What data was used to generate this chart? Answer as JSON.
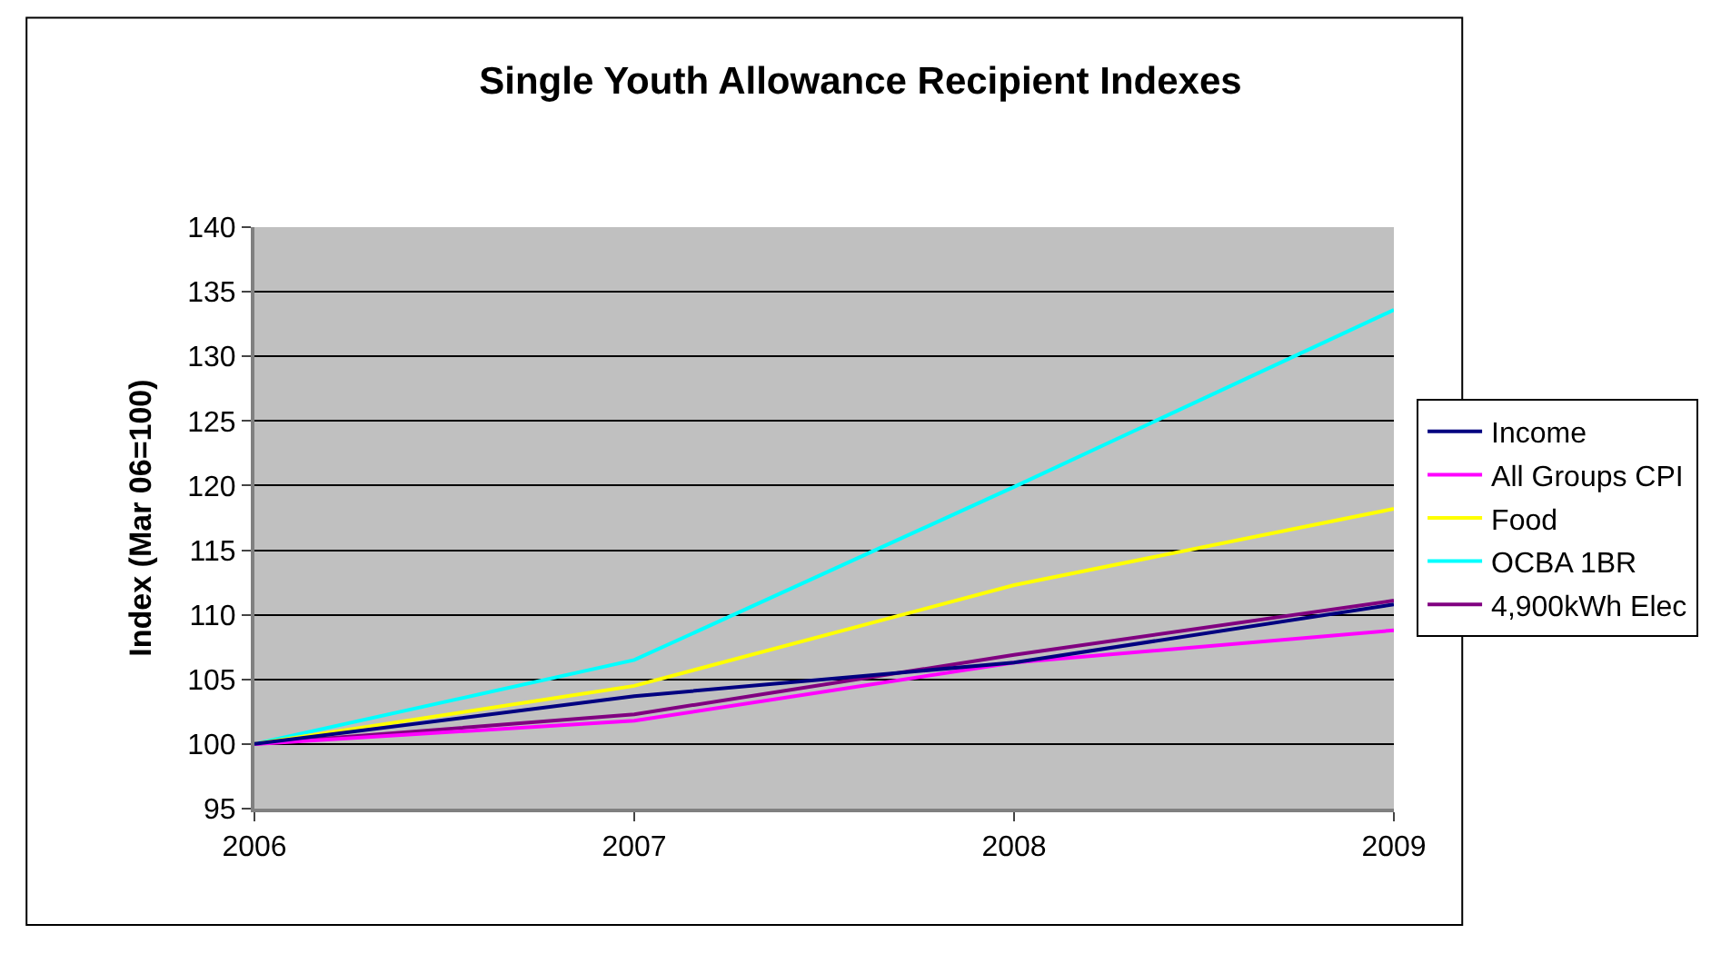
{
  "chart_data": {
    "type": "line",
    "title": "Single Youth Allowance Recipient Indexes",
    "ylabel": "Index (Mar 06=100)",
    "x": [
      2006,
      2007,
      2008,
      2009
    ],
    "xlim": [
      2006,
      2009
    ],
    "xticks": [
      2006,
      2007,
      2008,
      2009
    ],
    "ylim": [
      95,
      140
    ],
    "yticks": [
      95,
      100,
      105,
      110,
      115,
      120,
      125,
      130,
      135,
      140
    ],
    "grid": "y",
    "legend": "right",
    "marker": "none",
    "series": [
      {
        "name": "Income",
        "color": "#000080",
        "values": [
          100,
          103.7,
          106.3,
          110.8
        ]
      },
      {
        "name": "All Groups CPI",
        "color": "#ff00ff",
        "values": [
          100,
          101.8,
          106.3,
          108.8
        ]
      },
      {
        "name": "Food",
        "color": "#ffff00",
        "values": [
          100,
          104.5,
          112.3,
          118.2
        ]
      },
      {
        "name": "OCBA 1BR",
        "color": "#00ffff",
        "values": [
          100,
          106.5,
          119.9,
          133.6
        ]
      },
      {
        "name": "4,900kWh Elec",
        "color": "#800080",
        "values": [
          100,
          102.3,
          106.9,
          111.1
        ]
      }
    ]
  }
}
